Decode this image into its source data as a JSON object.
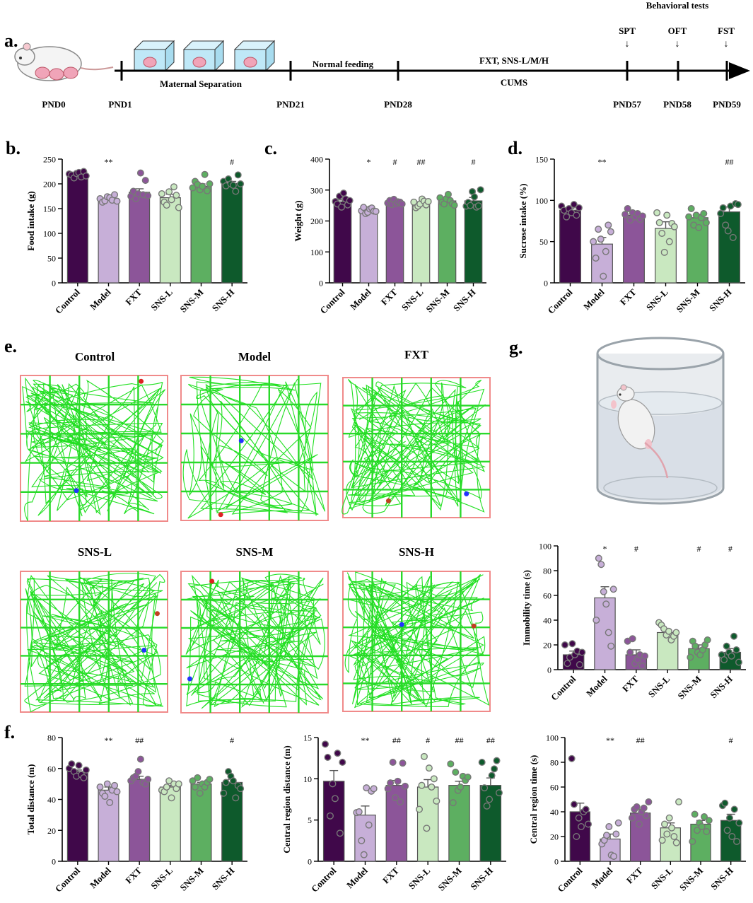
{
  "colors": {
    "Control": "#40084a",
    "Model": "#c7afd8",
    "FXT": "#8c5599",
    "SNS-L": "#c9e8c0",
    "SNS-M": "#5daf61",
    "SNS-H": "#0e5a2c",
    "track": "#22e022",
    "grid": "#2ad92a",
    "arena_border": "#f08a8a"
  },
  "timeline": {
    "label": "a.",
    "stages": [
      {
        "text": "Maternal Separation"
      },
      {
        "text": "Normal feeding"
      },
      {
        "text": "FXT, SNS-L/M/H"
      },
      {
        "text": "CUMS"
      },
      {
        "text": "Behavioral tests"
      }
    ],
    "days": [
      "PND0",
      "PND1",
      "PND21",
      "PND28",
      "PND57",
      "PND58",
      "PND59"
    ],
    "tests": [
      "SPT",
      "OFT",
      "FST"
    ]
  },
  "oft": {
    "label": "e.",
    "groups": [
      "Control",
      "Model",
      "FXT",
      "SNS-L",
      "SNS-M",
      "SNS-H"
    ]
  },
  "fst": {
    "label": "g."
  },
  "chart_data": [
    {
      "id": "food",
      "panel_label": "b.",
      "type": "bar",
      "categories": [
        "Control",
        "Model",
        "FXT",
        "SNS-L",
        "SNS-M",
        "SNS-H"
      ],
      "values": [
        218,
        169,
        183,
        172,
        195,
        201
      ],
      "errors": [
        3,
        4,
        7,
        7,
        5,
        4
      ],
      "points": [
        [
          220,
          218,
          212,
          221,
          223,
          214,
          225,
          216
        ],
        [
          170,
          163,
          166,
          174,
          172,
          167,
          178,
          165
        ],
        [
          175,
          185,
          170,
          180,
          222,
          178,
          207,
          176
        ],
        [
          180,
          163,
          157,
          184,
          168,
          194,
          177,
          152
        ],
        [
          192,
          205,
          199,
          188,
          195,
          219,
          186,
          200
        ],
        [
          205,
          196,
          210,
          200,
          197,
          185,
          218,
          200
        ]
      ],
      "significance": [
        "",
        "**",
        "",
        "",
        "",
        "#"
      ],
      "ylabel": "Food intake (g)",
      "ylim": [
        0,
        250
      ],
      "yticks": [
        0,
        50,
        100,
        150,
        200,
        250
      ]
    },
    {
      "id": "weight",
      "panel_label": "c.",
      "type": "bar",
      "categories": [
        "Control",
        "Model",
        "FXT",
        "SNS-L",
        "SNS-M",
        "SNS-H"
      ],
      "values": [
        262,
        234,
        260,
        257,
        265,
        265
      ],
      "errors": [
        6,
        4,
        3,
        5,
        5,
        11
      ],
      "points": [
        [
          263,
          255,
          280,
          245,
          290,
          271,
          252,
          266
        ],
        [
          233,
          244,
          224,
          228,
          239,
          242,
          232,
          231
        ],
        [
          258,
          266,
          253,
          270,
          256,
          262,
          261,
          255
        ],
        [
          261,
          243,
          248,
          255,
          271,
          264,
          252,
          263
        ],
        [
          275,
          261,
          255,
          272,
          286,
          266,
          256,
          251
        ],
        [
          248,
          260,
          250,
          295,
          278,
          245,
          249,
          301
        ]
      ],
      "significance": [
        "",
        "*",
        "#",
        "##",
        "",
        "#"
      ],
      "ylabel": "Weight (g)",
      "ylim": [
        0,
        400
      ],
      "yticks": [
        0,
        100,
        200,
        300,
        400
      ]
    },
    {
      "id": "sucrose",
      "panel_label": "d.",
      "type": "bar",
      "categories": [
        "Control",
        "Model",
        "FXT",
        "SNS-L",
        "SNS-M",
        "SNS-H"
      ],
      "values": [
        88,
        47,
        82,
        66,
        79,
        86
      ],
      "errors": [
        2,
        8,
        3,
        8,
        4,
        6
      ],
      "points": [
        [
          93,
          88,
          80,
          90,
          85,
          95,
          82,
          91
        ],
        [
          50,
          30,
          65,
          53,
          8,
          38,
          70,
          62
        ],
        [
          83,
          90,
          76,
          85,
          80,
          84,
          77,
          81
        ],
        [
          85,
          73,
          60,
          37,
          82,
          50,
          72,
          68
        ],
        [
          80,
          90,
          70,
          82,
          67,
          79,
          84,
          73
        ],
        [
          84,
          91,
          70,
          63,
          93,
          55,
          96,
          95
        ]
      ],
      "significance": [
        "",
        "**",
        "",
        "",
        "",
        "##"
      ],
      "ylabel": "Sucrose intake (%)",
      "ylim": [
        0,
        150
      ],
      "yticks": [
        0,
        50,
        100,
        150
      ]
    },
    {
      "id": "immobility",
      "panel_label": "",
      "type": "bar",
      "categories": [
        "Control",
        "Model",
        "FXT",
        "SNS-L",
        "SNS-M",
        "SNS-H"
      ],
      "values": [
        12,
        58,
        12,
        30,
        17,
        14
      ],
      "errors": [
        3,
        9,
        4,
        2,
        3,
        3
      ],
      "points": [
        [
          20,
          5,
          10,
          21,
          12,
          15,
          4,
          14
        ],
        [
          40,
          90,
          85,
          63,
          53,
          30,
          19,
          65
        ],
        [
          23,
          14,
          25,
          5,
          8,
          12,
          3,
          11
        ],
        [
          38,
          36,
          33,
          28,
          31,
          24,
          27,
          30
        ],
        [
          10,
          23,
          19,
          14,
          12,
          16,
          20,
          24
        ],
        [
          12,
          8,
          19,
          14,
          11,
          27,
          16,
          6
        ]
      ],
      "significance": [
        "",
        "*",
        "#",
        "",
        "#",
        "#"
      ],
      "ylabel": "Immobility time (s)",
      "ylim": [
        0,
        100
      ],
      "yticks": [
        0,
        20,
        40,
        60,
        80,
        100
      ]
    },
    {
      "id": "total_distance",
      "panel_label": "f.",
      "type": "bar",
      "categories": [
        "Control",
        "Model",
        "FXT",
        "SNS-L",
        "SNS-M",
        "SNS-H"
      ],
      "values": [
        58,
        46,
        53,
        48,
        50,
        51
      ],
      "errors": [
        1,
        2,
        2,
        1,
        1,
        2
      ],
      "points": [
        [
          60,
          63,
          58,
          55,
          62,
          56,
          54,
          59
        ],
        [
          48,
          44,
          42,
          50,
          38,
          46,
          49,
          45
        ],
        [
          52,
          54,
          55,
          58,
          66,
          51,
          50,
          53
        ],
        [
          46,
          45,
          48,
          52,
          41,
          50,
          47,
          50
        ],
        [
          52,
          48,
          54,
          44,
          50,
          48,
          51,
          53
        ],
        [
          44,
          51,
          58,
          55,
          52,
          41,
          49,
          47
        ]
      ],
      "significance": [
        "",
        "**",
        "##",
        "",
        "",
        "#"
      ],
      "ylabel": "Total distance (m)",
      "ylim": [
        0,
        80
      ],
      "yticks": [
        0,
        20,
        40,
        60,
        80
      ]
    },
    {
      "id": "central_distance",
      "panel_label": "",
      "type": "bar",
      "categories": [
        "Control",
        "Model",
        "FXT",
        "SNS-L",
        "SNS-M",
        "SNS-H"
      ],
      "values": [
        9.7,
        5.6,
        9.2,
        9.0,
        9.2,
        9.2
      ],
      "errors": [
        1.3,
        1.1,
        0.6,
        0.9,
        0.5,
        0.9
      ],
      "points": [
        [
          14.2,
          12.6,
          5.5,
          9.4,
          7.6,
          13.1,
          3.4,
          12.0
        ],
        [
          5.9,
          6.0,
          2.5,
          0.8,
          8.9,
          4.4,
          8.5,
          8.8
        ],
        [
          8.8,
          9.5,
          12.0,
          7.7,
          9.7,
          7.2,
          11.9,
          9.1
        ],
        [
          6.3,
          9.2,
          12.7,
          4.0,
          11.3,
          9.0,
          10.0,
          7.3
        ],
        [
          11.8,
          7.1,
          10.8,
          8.6,
          9.0,
          10.3,
          9.8,
          10.2
        ],
        [
          12.0,
          8.9,
          6.7,
          7.5,
          10.4,
          11.2,
          12.2,
          8.3
        ]
      ],
      "significance": [
        "",
        "**",
        "##",
        "#",
        "##",
        "##"
      ],
      "ylabel": "Central region distance (m)",
      "ylim": [
        0,
        15
      ],
      "yticks": [
        0,
        5,
        10,
        15
      ]
    },
    {
      "id": "central_time",
      "panel_label": "",
      "type": "bar",
      "categories": [
        "Control",
        "Model",
        "FXT",
        "SNS-L",
        "SNS-M",
        "SNS-H"
      ],
      "values": [
        40,
        18,
        39,
        27,
        30,
        33
      ],
      "errors": [
        7,
        4,
        3,
        4,
        3,
        5
      ],
      "points": [
        [
          83,
          46,
          20,
          35,
          28,
          40,
          42,
          30
        ],
        [
          14,
          17,
          21,
          28,
          5,
          4,
          22,
          31
        ],
        [
          35,
          42,
          44,
          30,
          40,
          43,
          37,
          48
        ],
        [
          17,
          30,
          22,
          35,
          27,
          20,
          15,
          48
        ],
        [
          16,
          38,
          25,
          31,
          28,
          36,
          24,
          33
        ],
        [
          45,
          47,
          25,
          35,
          20,
          42,
          16,
          31
        ]
      ],
      "significance": [
        "",
        "**",
        "##",
        "",
        "",
        "#"
      ],
      "ylabel": "Central region time (s)",
      "ylim": [
        0,
        100
      ],
      "yticks": [
        0,
        20,
        40,
        60,
        80,
        100
      ]
    }
  ]
}
